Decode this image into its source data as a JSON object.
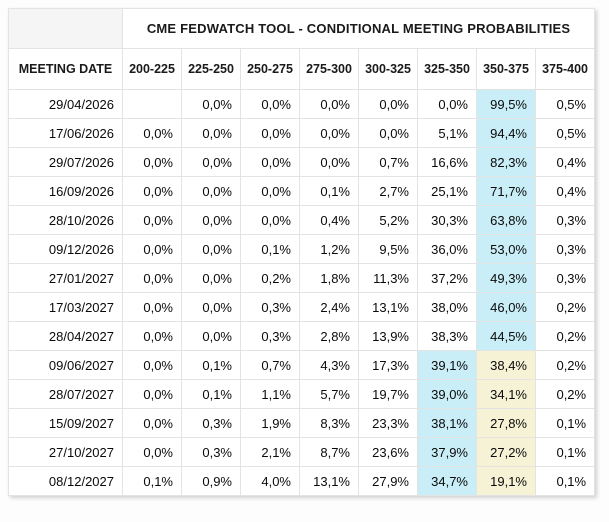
{
  "header": {
    "title": "CME FEDWATCH TOOL - CONDITIONAL MEETING PROBABILITIES",
    "date_column_label": "MEETING DATE",
    "rate_columns": [
      "200-225",
      "225-250",
      "250-275",
      "275-300",
      "300-325",
      "325-350",
      "350-375",
      "375-400"
    ]
  },
  "colors": {
    "max_probability_highlight": "#c9eef7",
    "secondary_highlight": "#f5f2d6",
    "corner_background": "#f5f5f5",
    "grid_line": "#e3e3e3"
  },
  "rows": [
    {
      "date": "29/04/2026",
      "values": [
        "",
        "0,0%",
        "0,0%",
        "0,0%",
        "0,0%",
        "0,0%",
        "99,5%",
        "0,5%"
      ],
      "highlight": [
        0,
        0,
        0,
        0,
        0,
        0,
        1,
        0
      ]
    },
    {
      "date": "17/06/2026",
      "values": [
        "0,0%",
        "0,0%",
        "0,0%",
        "0,0%",
        "0,0%",
        "5,1%",
        "94,4%",
        "0,5%"
      ],
      "highlight": [
        0,
        0,
        0,
        0,
        0,
        0,
        1,
        0
      ]
    },
    {
      "date": "29/07/2026",
      "values": [
        "0,0%",
        "0,0%",
        "0,0%",
        "0,0%",
        "0,7%",
        "16,6%",
        "82,3%",
        "0,4%"
      ],
      "highlight": [
        0,
        0,
        0,
        0,
        0,
        0,
        1,
        0
      ]
    },
    {
      "date": "16/09/2026",
      "values": [
        "0,0%",
        "0,0%",
        "0,0%",
        "0,1%",
        "2,7%",
        "25,1%",
        "71,7%",
        "0,4%"
      ],
      "highlight": [
        0,
        0,
        0,
        0,
        0,
        0,
        1,
        0
      ]
    },
    {
      "date": "28/10/2026",
      "values": [
        "0,0%",
        "0,0%",
        "0,0%",
        "0,4%",
        "5,2%",
        "30,3%",
        "63,8%",
        "0,3%"
      ],
      "highlight": [
        0,
        0,
        0,
        0,
        0,
        0,
        1,
        0
      ]
    },
    {
      "date": "09/12/2026",
      "values": [
        "0,0%",
        "0,0%",
        "0,1%",
        "1,2%",
        "9,5%",
        "36,0%",
        "53,0%",
        "0,3%"
      ],
      "highlight": [
        0,
        0,
        0,
        0,
        0,
        0,
        1,
        0
      ]
    },
    {
      "date": "27/01/2027",
      "values": [
        "0,0%",
        "0,0%",
        "0,2%",
        "1,8%",
        "11,3%",
        "37,2%",
        "49,3%",
        "0,3%"
      ],
      "highlight": [
        0,
        0,
        0,
        0,
        0,
        0,
        1,
        0
      ]
    },
    {
      "date": "17/03/2027",
      "values": [
        "0,0%",
        "0,0%",
        "0,3%",
        "2,4%",
        "13,1%",
        "38,0%",
        "46,0%",
        "0,2%"
      ],
      "highlight": [
        0,
        0,
        0,
        0,
        0,
        0,
        1,
        0
      ]
    },
    {
      "date": "28/04/2027",
      "values": [
        "0,0%",
        "0,0%",
        "0,3%",
        "2,8%",
        "13,9%",
        "38,3%",
        "44,5%",
        "0,2%"
      ],
      "highlight": [
        0,
        0,
        0,
        0,
        0,
        0,
        1,
        0
      ]
    },
    {
      "date": "09/06/2027",
      "values": [
        "0,0%",
        "0,1%",
        "0,7%",
        "4,3%",
        "17,3%",
        "39,1%",
        "38,4%",
        "0,2%"
      ],
      "highlight": [
        0,
        0,
        0,
        0,
        0,
        1,
        2,
        0
      ]
    },
    {
      "date": "28/07/2027",
      "values": [
        "0,0%",
        "0,1%",
        "1,1%",
        "5,7%",
        "19,7%",
        "39,0%",
        "34,1%",
        "0,2%"
      ],
      "highlight": [
        0,
        0,
        0,
        0,
        0,
        1,
        2,
        0
      ]
    },
    {
      "date": "15/09/2027",
      "values": [
        "0,0%",
        "0,3%",
        "1,9%",
        "8,3%",
        "23,3%",
        "38,1%",
        "27,8%",
        "0,1%"
      ],
      "highlight": [
        0,
        0,
        0,
        0,
        0,
        1,
        2,
        0
      ]
    },
    {
      "date": "27/10/2027",
      "values": [
        "0,0%",
        "0,3%",
        "2,1%",
        "8,7%",
        "23,6%",
        "37,9%",
        "27,2%",
        "0,1%"
      ],
      "highlight": [
        0,
        0,
        0,
        0,
        0,
        1,
        2,
        0
      ]
    },
    {
      "date": "08/12/2027",
      "values": [
        "0,1%",
        "0,9%",
        "4,0%",
        "13,1%",
        "27,9%",
        "34,7%",
        "19,1%",
        "0,1%"
      ],
      "highlight": [
        0,
        0,
        0,
        0,
        0,
        1,
        2,
        0
      ]
    }
  ]
}
